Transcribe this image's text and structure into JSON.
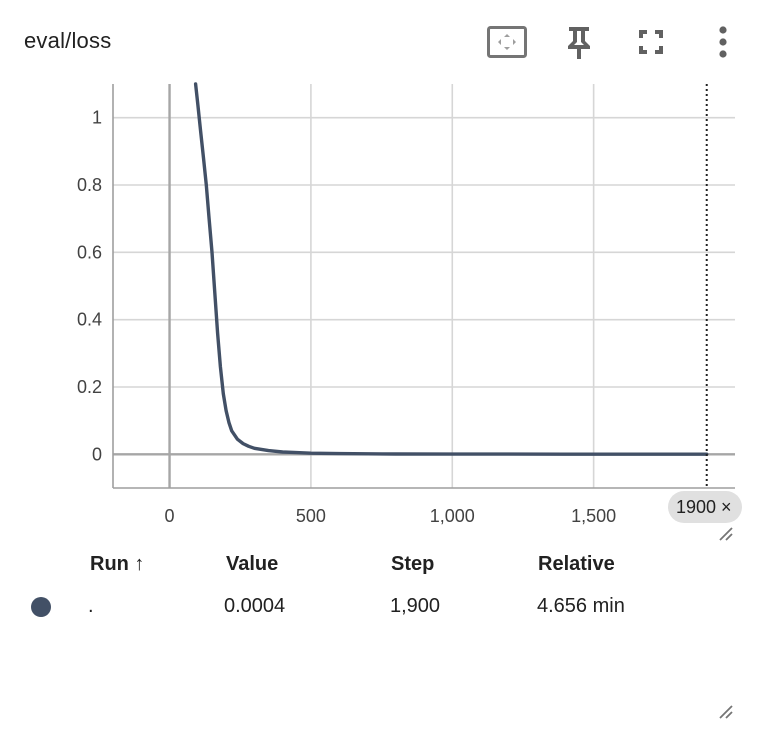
{
  "card": {
    "title": "eval/loss",
    "step_badge": "1900 ×"
  },
  "toolbar": {
    "icons": [
      "fit-domain-icon",
      "pin-icon",
      "fullscreen-icon",
      "more-vert-icon"
    ]
  },
  "colors": {
    "series": "#425066",
    "grid": "#d6d6d6",
    "axis": "#9e9e9e",
    "zero_line": "#a6a6a6"
  },
  "chart_data": {
    "type": "line",
    "title": "",
    "xlabel": "",
    "ylabel": "",
    "xlim": [
      -200,
      2000
    ],
    "ylim": [
      -0.1,
      1.1
    ],
    "x_ticks": [
      0,
      500,
      1000,
      1500
    ],
    "x_tick_labels": [
      "0",
      "500",
      "1,000",
      "1,500"
    ],
    "y_ticks": [
      0,
      0.2,
      0.4,
      0.6,
      0.8,
      1
    ],
    "y_tick_labels": [
      "0",
      "0.2",
      "0.4",
      "0.6",
      "0.8",
      "1"
    ],
    "grid": true,
    "hover_step": 1900,
    "series": [
      {
        "name": ".",
        "x": [
          92,
          100,
          110,
          120,
          130,
          140,
          150,
          160,
          170,
          180,
          190,
          200,
          210,
          220,
          240,
          260,
          280,
          300,
          350,
          400,
          450,
          500,
          600,
          700,
          800,
          1000,
          1200,
          1400,
          1600,
          1800,
          1900
        ],
        "y": [
          1.1,
          1.04,
          0.96,
          0.88,
          0.8,
          0.7,
          0.6,
          0.48,
          0.36,
          0.26,
          0.18,
          0.13,
          0.095,
          0.07,
          0.045,
          0.032,
          0.024,
          0.018,
          0.011,
          0.007,
          0.005,
          0.0035,
          0.0022,
          0.0015,
          0.0011,
          0.0008,
          0.0006,
          0.0005,
          0.00045,
          0.0004,
          0.0004
        ]
      }
    ]
  },
  "table": {
    "headers": {
      "run": "Run ↑",
      "value": "Value",
      "step": "Step",
      "relative": "Relative"
    },
    "rows": [
      {
        "run": ".",
        "value": "0.0004",
        "step": "1,900",
        "relative": "4.656 min",
        "color": "#425066"
      }
    ]
  }
}
